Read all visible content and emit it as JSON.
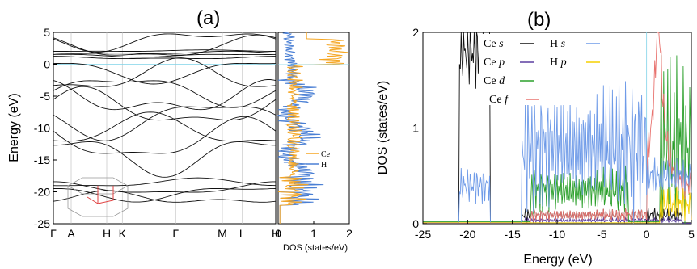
{
  "chart_data": [
    {
      "panel": "(a)",
      "type": "line",
      "ylabel": "Energy (eV)",
      "ylim": [
        -25,
        5
      ],
      "yticks": [
        -25,
        -20,
        -15,
        -10,
        -5,
        0,
        5
      ],
      "kpoints": [
        "Γ",
        "A",
        "H",
        "K",
        "Γ",
        "M",
        "L",
        "H"
      ],
      "kpos": [
        0,
        0.08,
        0.24,
        0.31,
        0.55,
        0.76,
        0.85,
        1.0
      ]
    },
    {
      "type": "line",
      "xlabel": "DOS (states/eV)",
      "xlim": [
        0,
        2
      ],
      "xticks": [
        0,
        1,
        2
      ],
      "ylim": [
        -25,
        5
      ],
      "legend": [
        "Ce",
        "H"
      ],
      "colors": {
        "Ce": "#f5a623",
        "H": "#4a7fd4"
      }
    },
    {
      "panel": "(b)",
      "type": "line",
      "xlabel": "Energy (eV)",
      "ylabel": "DOS (states/eV)",
      "xlim": [
        -25,
        5
      ],
      "ylim": [
        0,
        2
      ],
      "xticks": [
        -25,
        -20,
        -15,
        -10,
        -5,
        0,
        5
      ],
      "yticks": [
        0,
        1,
        2
      ],
      "series": [
        {
          "name": "Ce s",
          "color": "#111111"
        },
        {
          "name": "Ce p",
          "color": "#5b3fa0"
        },
        {
          "name": "Ce d",
          "color": "#2ca02c"
        },
        {
          "name": "Ce f",
          "color": "#e8736f"
        },
        {
          "name": "H s",
          "color": "#6f9be8"
        },
        {
          "name": "H p",
          "color": "#f5d000"
        }
      ]
    }
  ],
  "legend_b": [
    {
      "elem": "Ce",
      "orb": "s"
    },
    {
      "elem": "Ce",
      "orb": "p"
    },
    {
      "elem": "Ce",
      "orb": "d"
    },
    {
      "elem": "Ce",
      "orb": "f"
    },
    {
      "elem": "H",
      "orb": "s"
    },
    {
      "elem": "H",
      "orb": "p"
    }
  ]
}
